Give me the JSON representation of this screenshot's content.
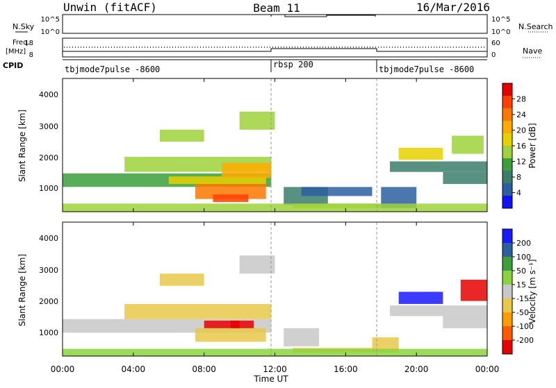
{
  "header": {
    "station": "Unwin (fitACF)",
    "beam": "Beam 11",
    "date": "16/Mar/2016"
  },
  "top_panels": {
    "nsky_label": "N.Sky",
    "nsearch_label": "N.Search",
    "freq_label_line1": "Freq.",
    "freq_label_line2": "[MHz]",
    "nave_label": "Nave",
    "cpid_label": "CPID",
    "nsky_ticks": [
      "10^5",
      "10^0"
    ],
    "nsearch_ticks": [
      "10^5",
      "10^0"
    ],
    "freq_ticks": [
      "18",
      "8"
    ],
    "nave_ticks": [
      "60",
      "0"
    ],
    "cpid_segments": [
      {
        "label": "tbjmode7pulse -8600",
        "start_hour": 0,
        "end_hour": 12
      },
      {
        "label": "rbsp 200",
        "start_hour": 12,
        "end_hour": 18
      },
      {
        "label": "tbjmode7pulse -8600",
        "start_hour": 18,
        "end_hour": 24
      }
    ]
  },
  "colorbars": {
    "power": {
      "title": "Power [dB]",
      "ticks": [
        "28",
        "24",
        "20",
        "16",
        "12",
        "8",
        "4"
      ],
      "colors": [
        "#e60000",
        "#ff4000",
        "#ff7700",
        "#ffaa00",
        "#e6d000",
        "#9fd23c",
        "#3c9f3c",
        "#3b7d6b",
        "#2b5fa0",
        "#1010ff"
      ]
    },
    "velocity": {
      "title": "Velocity [m s⁻¹]",
      "ticks": [
        "200",
        "100",
        "50",
        "15",
        "-15",
        "-50",
        "-100",
        "-200"
      ],
      "colors": [
        "#1a1aff",
        "#2b5fa0",
        "#3c9f3c",
        "#8bd33c",
        "#c8c8c8",
        "#e8c84a",
        "#ff9d00",
        "#ff5a00",
        "#e60000"
      ]
    }
  },
  "chart_data": {
    "type": "heatmap",
    "title": "Unwin (fitACF) Beam 11 16/Mar/2016",
    "xlabel": "Time UT",
    "ylabel": "Slant Range [km]",
    "x_ticks": [
      "00:00",
      "04:00",
      "08:00",
      "12:00",
      "16:00",
      "20:00",
      "00:00"
    ],
    "xlim_hours": [
      0,
      24
    ],
    "y_ticks": [
      "4000",
      "3000",
      "2000",
      "1000"
    ],
    "ylim_km": [
      180,
      4600
    ],
    "mode_change_hours": [
      12,
      18
    ],
    "panels": [
      {
        "name": "Power",
        "title": "Power [dB]",
        "echo_regions": [
          {
            "t0": 0.0,
            "t1": 11.8,
            "r0": 1000,
            "r1": 1450,
            "value": 10
          },
          {
            "t0": 3.5,
            "t1": 11.8,
            "r0": 1500,
            "r1": 2000,
            "value": 16
          },
          {
            "t0": 6.0,
            "t1": 11.5,
            "r0": 1100,
            "r1": 1350,
            "value": 18
          },
          {
            "t0": 7.5,
            "t1": 11.5,
            "r0": 600,
            "r1": 1100,
            "value": 24
          },
          {
            "t0": 8.5,
            "t1": 10.5,
            "r0": 500,
            "r1": 750,
            "value": 26
          },
          {
            "t0": 9.0,
            "t1": 11.8,
            "r0": 1300,
            "r1": 1800,
            "value": 20
          },
          {
            "t0": 10.0,
            "t1": 12.0,
            "r0": 2900,
            "r1": 3500,
            "value": 14
          },
          {
            "t0": 5.5,
            "t1": 8.0,
            "r0": 2500,
            "r1": 2900,
            "value": 14
          },
          {
            "t0": 12.5,
            "t1": 15.0,
            "r0": 400,
            "r1": 1000,
            "value": 8
          },
          {
            "t0": 13.5,
            "t1": 17.5,
            "r0": 700,
            "r1": 1000,
            "value": 6
          },
          {
            "t0": 13.0,
            "t1": 18.0,
            "r0": 300,
            "r1": 450,
            "value": 14
          },
          {
            "t0": 18.0,
            "t1": 20.0,
            "r0": 300,
            "r1": 1000,
            "value": 6
          },
          {
            "t0": 19.0,
            "t1": 21.5,
            "r0": 1900,
            "r1": 2300,
            "value": 18
          },
          {
            "t0": 18.5,
            "t1": 24.0,
            "r0": 1500,
            "r1": 1850,
            "value": 8
          },
          {
            "t0": 21.5,
            "t1": 24.0,
            "r0": 1100,
            "r1": 1500,
            "value": 8
          },
          {
            "t0": 22.0,
            "t1": 23.8,
            "r0": 2100,
            "r1": 2700,
            "value": 14
          },
          {
            "t0": 0.0,
            "t1": 24.0,
            "r0": 180,
            "r1": 450,
            "value": 14
          }
        ]
      },
      {
        "name": "Velocity",
        "title": "Velocity [m s⁻¹]",
        "echo_regions": [
          {
            "t0": 0.0,
            "t1": 11.8,
            "r0": 950,
            "r1": 1400,
            "value": 0
          },
          {
            "t0": 3.5,
            "t1": 11.8,
            "r0": 1400,
            "r1": 1900,
            "value": -30
          },
          {
            "t0": 7.5,
            "t1": 11.5,
            "r0": 650,
            "r1": 1100,
            "value": -60
          },
          {
            "t0": 8.0,
            "t1": 10.0,
            "r0": 1100,
            "r1": 1350,
            "value": -220
          },
          {
            "t0": 9.5,
            "t1": 10.8,
            "r0": 1100,
            "r1": 1350,
            "value": -220
          },
          {
            "t0": 10.0,
            "t1": 12.0,
            "r0": 2900,
            "r1": 3500,
            "value": -20
          },
          {
            "t0": 5.5,
            "t1": 8.0,
            "r0": 2500,
            "r1": 2900,
            "value": -30
          },
          {
            "t0": 12.5,
            "t1": 14.5,
            "r0": 500,
            "r1": 1100,
            "value": 0
          },
          {
            "t0": 13.0,
            "t1": 17.5,
            "r0": 300,
            "r1": 450,
            "value": -60
          },
          {
            "t0": 17.5,
            "t1": 19.0,
            "r0": 300,
            "r1": 800,
            "value": -30
          },
          {
            "t0": 19.0,
            "t1": 21.5,
            "r0": 1900,
            "r1": 2300,
            "value": 220
          },
          {
            "t0": 22.5,
            "t1": 24.0,
            "r0": 2000,
            "r1": 2700,
            "value": -220
          },
          {
            "t0": 18.5,
            "t1": 24.0,
            "r0": 1500,
            "r1": 1850,
            "value": -5
          },
          {
            "t0": 21.5,
            "t1": 24.0,
            "r0": 1100,
            "r1": 1500,
            "value": -5
          },
          {
            "t0": 0.0,
            "t1": 24.0,
            "r0": 180,
            "r1": 420,
            "value": 30
          }
        ]
      }
    ]
  }
}
